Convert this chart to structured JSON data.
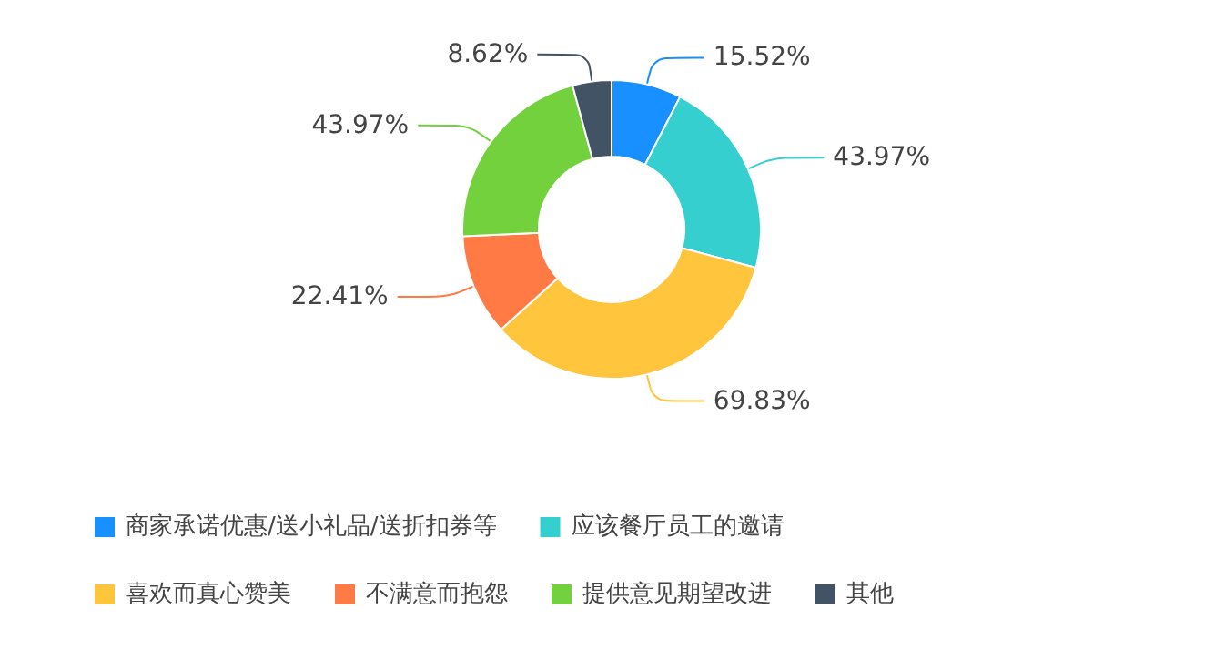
{
  "chart_data": {
    "type": "donut",
    "categories": [
      "商家承诺优惠/送小礼品/送折扣券等",
      "应该餐厅员工的邀请",
      "喜欢而真心赞美",
      "不满意而抱怨",
      "提供意见期望改进",
      "其他"
    ],
    "values": [
      15.52,
      43.97,
      69.83,
      22.41,
      43.97,
      8.62
    ],
    "colors": [
      "#1890ff",
      "#36cfcf",
      "#ffc53d",
      "#ff7a45",
      "#73d13d",
      "#435366"
    ],
    "value_labels": [
      "15.52%",
      "43.97%",
      "69.83%",
      "22.41%",
      "43.97%",
      "8.62%"
    ],
    "legend": "bottom"
  }
}
